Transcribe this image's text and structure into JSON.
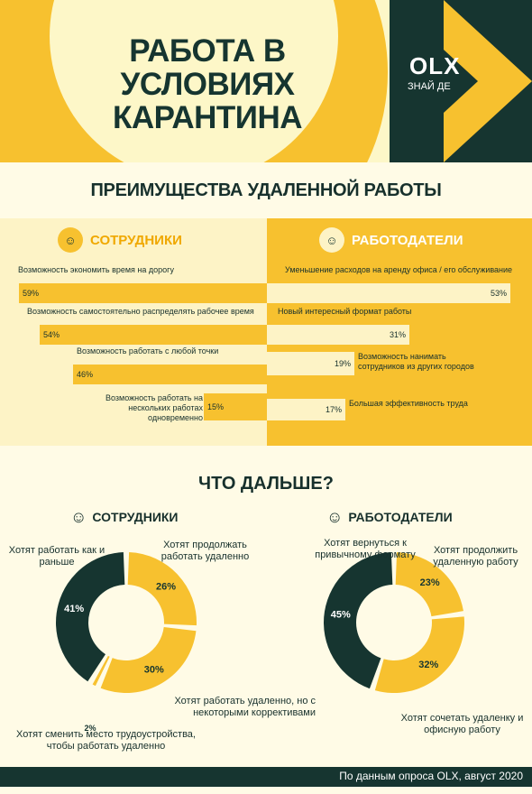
{
  "hero": {
    "title": "РАБОТА В УСЛОВИЯХ КАРАНТИНА",
    "logo": "OLX",
    "tagline": "ЗНАЙ ДЕ"
  },
  "section1": {
    "title": "ПРЕИМУЩЕСТВА УДАЛЕННОЙ РАБОТЫ",
    "left_header": "СОТРУДНИКИ",
    "right_header": "РАБОТОДАТЕЛИ"
  },
  "section2": {
    "title": "ЧТО ДАЛЬШЕ?",
    "left_header": "СОТРУДНИКИ",
    "right_header": "РАБОТОДАТЕЛИ"
  },
  "footer": {
    "text": "По данным опроса OLX, август 2020"
  },
  "colors": {
    "dark": "#163530",
    "yellow": "#f7c12f",
    "cream": "#fdf3c6"
  },
  "chart_data": [
    {
      "type": "bar",
      "group": "СОТРУДНИКИ",
      "categories": [
        "Возможность экономить время на дорогу",
        "Возможность самостоятельно распределять рабочее время",
        "Возможность работать с любой точки",
        "Возможность работать на нескольких работах одновременно"
      ],
      "values": [
        59,
        54,
        46,
        15
      ],
      "labels": [
        "59%",
        "54%",
        "46%",
        "15%"
      ]
    },
    {
      "type": "bar",
      "group": "РАБОТОДАТЕЛИ",
      "categories": [
        "Уменьшение расходов на аренду офиса / его обслуживание",
        "Новый интересный формат работы",
        "Возможность нанимать сотрудников из других городов",
        "Большая эффективность труда"
      ],
      "values": [
        53,
        31,
        19,
        17
      ],
      "labels": [
        "53%",
        "31%",
        "19%",
        "17%"
      ]
    },
    {
      "type": "pie",
      "group": "СОТРУДНИКИ",
      "categories": [
        "Хотят продолжать работать удаленно",
        "Хотят работать удаленно, но с некоторыми коррективами",
        "Хотят сменить место трудоустройства, чтобы работать удаленно",
        "Хотят работать как и раньше"
      ],
      "values": [
        26,
        30,
        2,
        41
      ],
      "labels": [
        "26%",
        "30%",
        "2%",
        "41%"
      ]
    },
    {
      "type": "pie",
      "group": "РАБОТОДАТЕЛИ",
      "categories": [
        "Хотят продолжить удаленную работу",
        "Хотят сочетать удаленку и офисную работу",
        "Хотят вернуться к привычному формату"
      ],
      "values": [
        23,
        32,
        45
      ],
      "labels": [
        "23%",
        "32%",
        "45%"
      ]
    }
  ]
}
